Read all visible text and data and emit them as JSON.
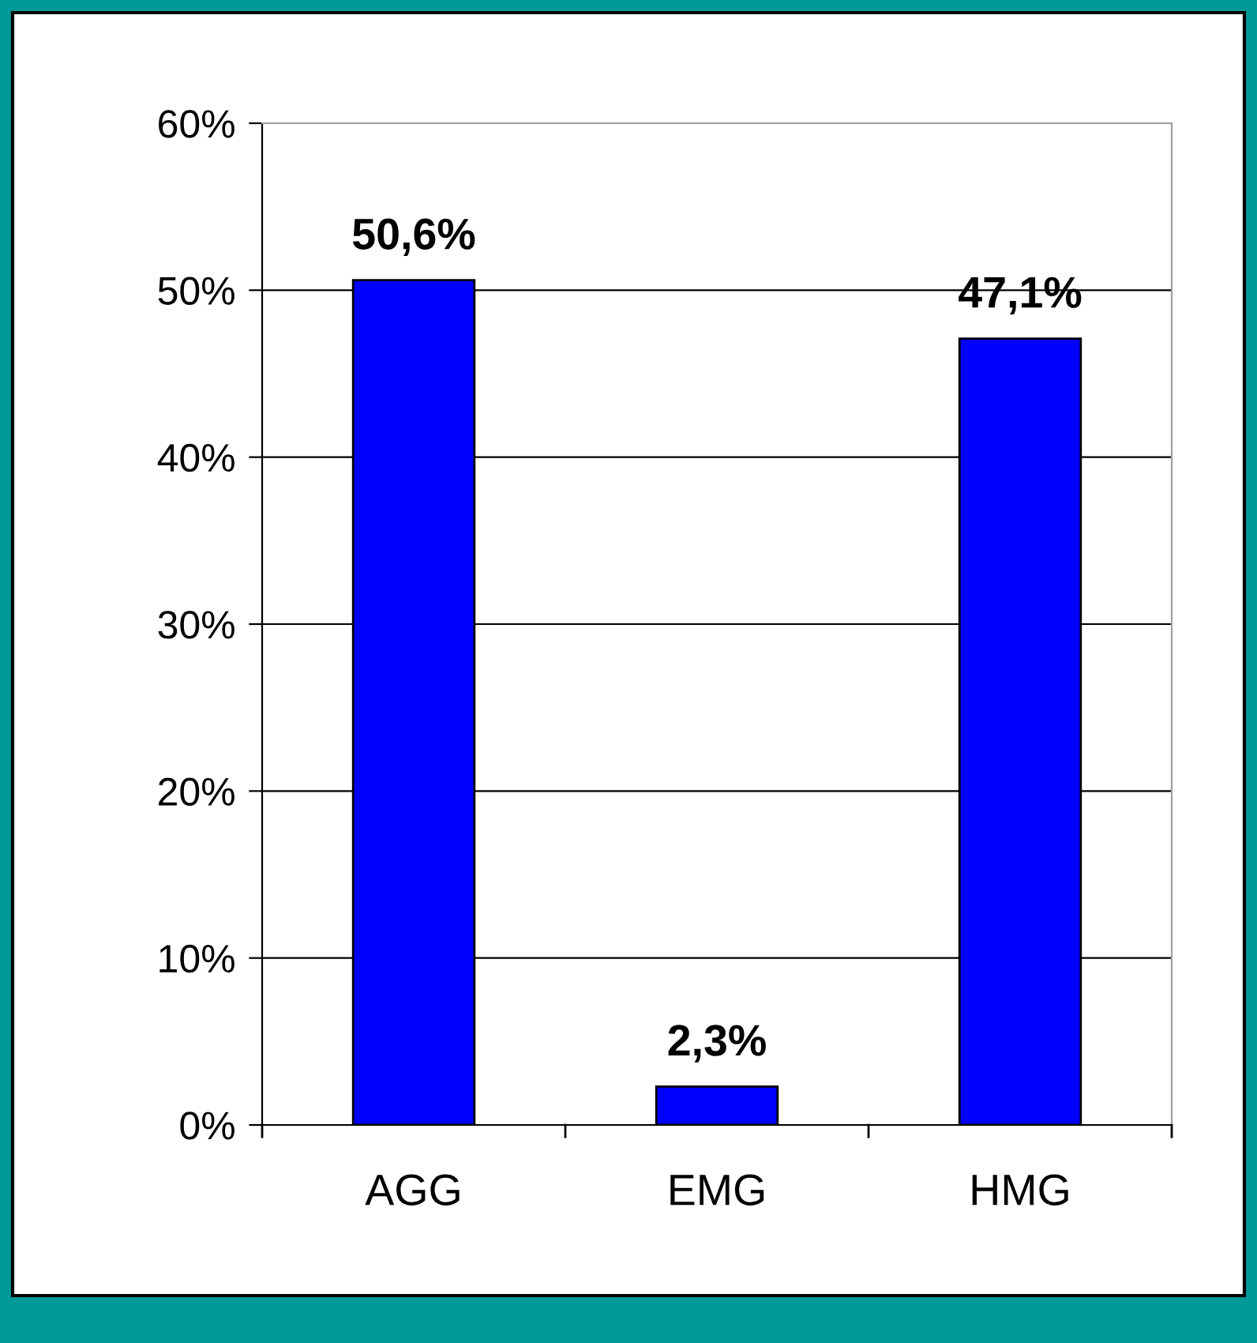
{
  "chart_data": {
    "type": "bar",
    "categories": [
      "AGG",
      "EMG",
      "HMG"
    ],
    "values": [
      50.6,
      2.3,
      47.1
    ],
    "color": "#0000ff",
    "value_labels": [
      "50,6%",
      "2,3%",
      "47,1%"
    ],
    "ylim": [
      0,
      60
    ],
    "yticks": [
      {
        "value": 0,
        "label": "0%"
      },
      {
        "value": 10,
        "label": "10%"
      },
      {
        "value": 20,
        "label": "20%"
      },
      {
        "value": 30,
        "label": "30%"
      },
      {
        "value": 40,
        "label": "40%"
      },
      {
        "value": 50,
        "label": "50%"
      },
      {
        "value": 60,
        "label": "60%"
      }
    ],
    "grid": "y"
  }
}
